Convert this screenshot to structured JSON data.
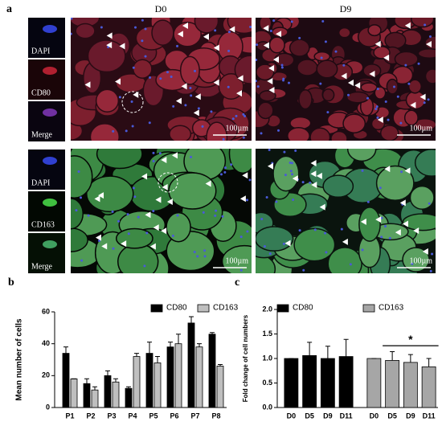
{
  "panel_a": {
    "label": "a",
    "columns": [
      "D0",
      "D9"
    ],
    "rows": [
      {
        "labels": [
          "DAPI",
          "CD80",
          "Merge"
        ]
      },
      {
        "labels": [
          "DAPI",
          "CD163",
          "Merge"
        ]
      }
    ],
    "scale_bar": "100µm"
  },
  "chart_data": [
    {
      "type": "bar",
      "label": "b",
      "y_label": "Mean number of cells",
      "categories": [
        "P1",
        "P2",
        "P3",
        "P4",
        "P5",
        "P6",
        "P7",
        "P8"
      ],
      "series": [
        {
          "name": "CD80",
          "color": "#000000",
          "values": [
            34,
            15,
            20,
            12,
            34,
            38,
            53,
            46
          ],
          "errors": [
            4,
            3,
            3,
            1,
            7,
            3,
            4,
            1
          ]
        },
        {
          "name": "CD163",
          "color": "#bfbfbf",
          "values": [
            18,
            11,
            16,
            32,
            28,
            40,
            38,
            26
          ],
          "errors": [
            0,
            2,
            2,
            2,
            4,
            6,
            2,
            1
          ]
        }
      ],
      "ylim": [
        0,
        60
      ],
      "yticks": [
        0,
        20,
        40,
        60
      ]
    },
    {
      "type": "bar",
      "label": "c",
      "y_label": "Fold change of cell numbers",
      "categories": [
        "D0",
        "D5",
        "D9",
        "D11",
        "D0",
        "D5",
        "D9",
        "D11"
      ],
      "series": [
        {
          "name": "CD80",
          "color": "#000000",
          "values": [
            1.0,
            1.06,
            1.0,
            1.04,
            null,
            null,
            null,
            null
          ],
          "errors": [
            0,
            0.27,
            0.25,
            0.35,
            null,
            null,
            null,
            null
          ]
        },
        {
          "name": "CD163",
          "color": "#a6a6a6",
          "values": [
            null,
            null,
            null,
            null,
            1.0,
            0.96,
            0.92,
            0.83
          ],
          "errors": [
            null,
            null,
            null,
            null,
            0,
            0.18,
            0.16,
            0.17
          ]
        }
      ],
      "annotation": "*",
      "ylim": [
        0,
        2
      ],
      "yticks": [
        {
          "value": 0,
          "label": "0.0"
        },
        {
          "value": 0.5,
          "label": "0.5"
        },
        {
          "value": 1,
          "label": "1.0"
        },
        {
          "value": 1.5,
          "label": "1.5"
        },
        {
          "value": 2,
          "label": "2.0"
        }
      ]
    }
  ]
}
